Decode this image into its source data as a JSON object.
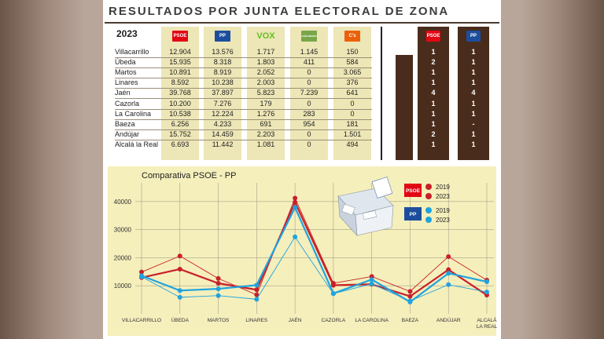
{
  "header": {
    "title": "RESULTADOS POR JUNTA ELECTORAL DE ZONA",
    "year": "2023"
  },
  "table": {
    "parties": [
      {
        "name": "PSOE",
        "logo_text": "PSOE",
        "color": "#e30613",
        "text_color": "#ffffff"
      },
      {
        "name": "PP",
        "logo_text": "PP",
        "color": "#1d4e9e",
        "text_color": "#ffffff"
      },
      {
        "name": "VOX",
        "logo_text": "VOX",
        "color": "#63be21",
        "text_color": "#63be21"
      },
      {
        "name": "JAÉN MERECE MÁS",
        "logo_text": "JAÉN MERECE MÁS",
        "color": "#7aa64a",
        "text_color": "#ffffff"
      },
      {
        "name": "CS",
        "logo_text": "C's",
        "color": "#eb6109",
        "text_color": "#ffffff"
      }
    ],
    "rows": [
      {
        "label": "Villacarrillo",
        "values": [
          "12.904",
          "13.576",
          "1.717",
          "1.145",
          "150"
        ],
        "seats": [
          "1",
          "1"
        ]
      },
      {
        "label": "Úbeda",
        "values": [
          "15.935",
          "8.318",
          "1.803",
          "411",
          "584"
        ],
        "seats": [
          "2",
          "1"
        ]
      },
      {
        "label": "Martos",
        "values": [
          "10.891",
          "8.919",
          "2.052",
          "0",
          "3.065"
        ],
        "seats": [
          "1",
          "1"
        ]
      },
      {
        "label": "Linares",
        "values": [
          "8.592",
          "10.238",
          "2.003",
          "0",
          "376"
        ],
        "seats": [
          "1",
          "1"
        ]
      },
      {
        "label": "Jaén",
        "values": [
          "39.768",
          "37.897",
          "5.823",
          "7.239",
          "641"
        ],
        "seats": [
          "4",
          "4"
        ]
      },
      {
        "label": "Cazorla",
        "values": [
          "10.200",
          "7.276",
          "179",
          "0",
          "0"
        ],
        "seats": [
          "1",
          "1"
        ]
      },
      {
        "label": "La Carolina",
        "values": [
          "10.538",
          "12.224",
          "1.276",
          "283",
          "0"
        ],
        "seats": [
          "1",
          "1"
        ]
      },
      {
        "label": "Baeza",
        "values": [
          "6.256",
          "4.233",
          "691",
          "954",
          "181"
        ],
        "seats": [
          "1",
          "-"
        ]
      },
      {
        "label": "Andújar",
        "values": [
          "15.752",
          "14.459",
          "2.203",
          "0",
          "1.501"
        ],
        "seats": [
          "2",
          "1"
        ]
      },
      {
        "label": "Alcalá la Real",
        "values": [
          "6.693",
          "11.442",
          "1.081",
          "0",
          "494"
        ],
        "seats": [
          "1",
          "1"
        ]
      }
    ],
    "seat_parties": [
      {
        "logo_text": "PSOE",
        "color": "#e30613"
      },
      {
        "logo_text": "PP",
        "color": "#1d4e9e"
      }
    ]
  },
  "chart_data": {
    "type": "line",
    "title": "Comparativa PSOE - PP",
    "categories": [
      "VILLACARRILLO",
      "ÚBEDA",
      "MARTOS",
      "LINARES",
      "JAÉN",
      "CAZORLA",
      "LA CAROLINA",
      "BAEZA",
      "ANDÚJAR",
      "ALCALÁ LA REAL"
    ],
    "category_lines": [
      [
        "VILLACARRILLO"
      ],
      [
        "ÚBEDA"
      ],
      [
        "MARTOS"
      ],
      [
        "LINARES"
      ],
      [
        "JAÉN"
      ],
      [
        "CAZORLA"
      ],
      [
        "LA CAROLINA"
      ],
      [
        "BAEZA"
      ],
      [
        "ANDÚJAR"
      ],
      [
        "ALCALÁ",
        "LA REAL"
      ]
    ],
    "yticks": [
      10000,
      20000,
      30000,
      40000
    ],
    "ylim": [
      0,
      50000
    ],
    "grid": true,
    "legend_position": "top-right",
    "legend": {
      "groups": [
        {
          "logo_text": "PSOE",
          "color": "#e30613",
          "entries": [
            "2019",
            "2023"
          ]
        },
        {
          "logo_text": "PP",
          "color": "#1d4e9e",
          "entries": [
            "2019",
            "2023"
          ]
        }
      ]
    },
    "series": [
      {
        "name": "PSOE 2019",
        "party": "PSOE",
        "year": "2019",
        "color": "#c8202a",
        "width": 0.9,
        "values": [
          14900,
          20600,
          12600,
          6800,
          41200,
          10900,
          13300,
          8000,
          20400,
          12000
        ]
      },
      {
        "name": "PSOE 2023",
        "party": "PSOE",
        "year": "2023",
        "color": "#c8202a",
        "width": 2.2,
        "values": [
          12904,
          15935,
          10891,
          8592,
          39768,
          10200,
          10538,
          6256,
          15752,
          6693
        ]
      },
      {
        "name": "PP 2019",
        "party": "PP",
        "year": "2019",
        "color": "#1fa3de",
        "width": 0.9,
        "values": [
          13200,
          5900,
          6500,
          5200,
          27400,
          7200,
          10700,
          4600,
          10400,
          7800
        ]
      },
      {
        "name": "PP 2023",
        "party": "PP",
        "year": "2023",
        "color": "#1fa3de",
        "width": 2.2,
        "values": [
          13576,
          8318,
          8919,
          10238,
          37897,
          7276,
          12224,
          4233,
          14459,
          11442
        ]
      }
    ]
  },
  "colors": {
    "panel": "#ffffff",
    "table_bg": "#ede6b6",
    "seat_bg": "#4a2c1c",
    "chart_bg": "#f5efbc"
  }
}
